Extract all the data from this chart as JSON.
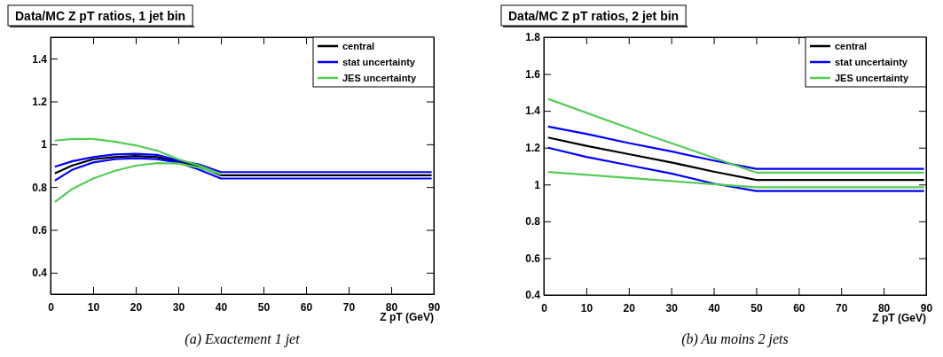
{
  "chart_data": [
    {
      "type": "line",
      "title": "Data/MC Z pT ratios, 1 jet bin",
      "xlabel": "Z pT (GeV)",
      "annotations": [
        "(a) Exactement 1 jet"
      ],
      "xlim": [
        0,
        90
      ],
      "ylim": [
        0.3,
        1.5
      ],
      "xticks": [
        0,
        10,
        20,
        30,
        40,
        50,
        60,
        70,
        80,
        90
      ],
      "yticks": [
        0.4,
        0.6,
        0.8,
        1,
        1.2,
        1.4
      ],
      "grid": false,
      "legend": "top right",
      "line_style": "solid",
      "marker": "none",
      "series": [
        {
          "name": "central",
          "color": "#000000",
          "x": [
            1,
            5,
            10,
            15,
            20,
            25,
            30,
            35,
            40,
            89.5
          ],
          "values": [
            0.864,
            0.9,
            0.93,
            0.94,
            0.945,
            0.94,
            0.92,
            0.895,
            0.855,
            0.855
          ]
        },
        {
          "name": "stat uncertainty",
          "color": "#0000ff",
          "x": [
            1,
            5,
            10,
            15,
            20,
            25,
            30,
            35,
            40,
            89.5
          ],
          "values": [
            0.895,
            0.92,
            0.94,
            0.952,
            0.955,
            0.95,
            0.925,
            0.905,
            0.87,
            0.87
          ]
        },
        {
          "color": "#0000ff",
          "x": [
            1,
            5,
            10,
            15,
            20,
            25,
            30,
            35,
            40,
            89.5
          ],
          "values": [
            0.83,
            0.88,
            0.915,
            0.93,
            0.935,
            0.93,
            0.915,
            0.88,
            0.84,
            0.84
          ]
        },
        {
          "name": "JES uncertainty",
          "color": "#55cc55",
          "x": [
            1,
            5,
            10,
            15,
            20,
            25,
            30,
            35,
            40
          ],
          "values": [
            1.017,
            1.025,
            1.025,
            1.012,
            0.995,
            0.97,
            0.93,
            0.9,
            0.86
          ]
        },
        {
          "color": "#55cc55",
          "x": [
            1,
            5,
            10,
            15,
            20,
            25,
            30,
            35,
            40
          ],
          "values": [
            0.73,
            0.79,
            0.84,
            0.875,
            0.9,
            0.912,
            0.91,
            0.89,
            0.86
          ]
        }
      ]
    },
    {
      "type": "line",
      "title": "Data/MC Z pT ratios, 2 jet bin",
      "xlabel": "Z pT (GeV)",
      "annotations": [
        "(b) Au moins 2 jets"
      ],
      "xlim": [
        0,
        90
      ],
      "ylim": [
        0.4,
        1.8
      ],
      "xticks": [
        0,
        10,
        20,
        30,
        40,
        50,
        60,
        70,
        80,
        90
      ],
      "yticks": [
        0.4,
        0.6,
        0.8,
        1,
        1.2,
        1.4,
        1.6,
        1.8
      ],
      "grid": false,
      "legend": "top right",
      "line_style": "solid",
      "marker": "none",
      "series": [
        {
          "name": "central",
          "color": "#000000",
          "x": [
            1,
            10,
            20,
            30,
            40,
            50,
            89.5
          ],
          "values": [
            1.255,
            1.21,
            1.165,
            1.12,
            1.07,
            1.025,
            1.025
          ]
        },
        {
          "name": "stat uncertainty",
          "color": "#0000ff",
          "x": [
            1,
            10,
            20,
            30,
            40,
            50,
            89.5
          ],
          "values": [
            1.315,
            1.275,
            1.225,
            1.18,
            1.13,
            1.085,
            1.085
          ]
        },
        {
          "color": "#0000ff",
          "x": [
            1,
            10,
            20,
            30,
            40,
            50,
            89.5
          ],
          "values": [
            1.2,
            1.15,
            1.105,
            1.06,
            1.005,
            0.965,
            0.965
          ]
        },
        {
          "name": "JES uncertainty",
          "color": "#55cc55",
          "x": [
            1,
            25,
            50,
            89.5
          ],
          "values": [
            1.465,
            1.265,
            1.065,
            1.065
          ]
        },
        {
          "color": "#55cc55",
          "x": [
            1,
            25,
            50,
            89.5
          ],
          "values": [
            1.068,
            1.027,
            0.985,
            0.985
          ]
        }
      ]
    }
  ]
}
